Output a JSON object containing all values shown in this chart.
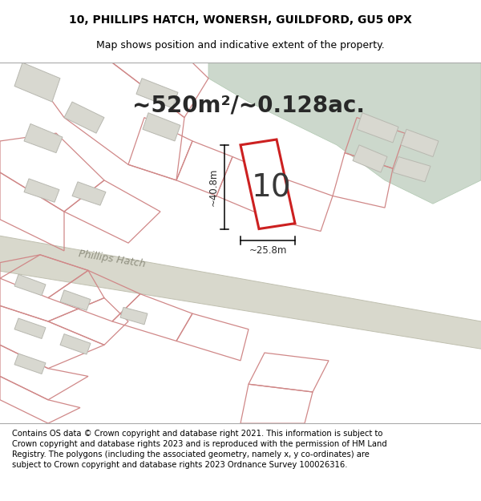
{
  "title_line1": "10, PHILLIPS HATCH, WONERSH, GUILDFORD, GU5 0PX",
  "title_line2": "Map shows position and indicative extent of the property.",
  "area_text": "~520m²/~0.128ac.",
  "property_number": "10",
  "dim_width": "~25.8m",
  "dim_height": "~40.8m",
  "road_label": "Phillips Hatch",
  "footer_text": "Contains OS data © Crown copyright and database right 2021. This information is subject to Crown copyright and database rights 2023 and is reproduced with the permission of HM Land Registry. The polygons (including the associated geometry, namely x, y co-ordinates) are subject to Crown copyright and database rights 2023 Ordnance Survey 100026316.",
  "map_bg": "#eeeee8",
  "green_color": "#ccd8cc",
  "property_edge": "#cc2020",
  "property_fill": "#ffffff",
  "plot_line_color": "#d08888",
  "building_fill": "#d8d8d0",
  "building_edge": "#b8b8b0",
  "road_fill": "#d8d8cc",
  "road_edge": "#c0c0b0",
  "title_fontsize": 10,
  "subtitle_fontsize": 9,
  "area_fontsize": 20,
  "number_fontsize": 28,
  "road_label_fontsize": 9,
  "footer_fontsize": 7.2
}
